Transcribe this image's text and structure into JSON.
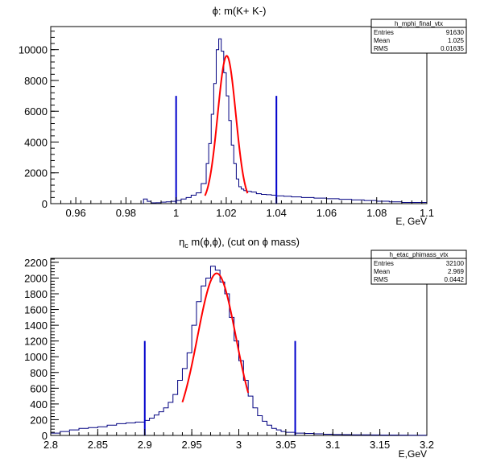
{
  "chart_data": [
    {
      "type": "histogram",
      "title": "ϕ: m(K+ K-)",
      "xlabel": "E, GeV",
      "ylabel": "",
      "xlim": [
        0.95,
        1.1
      ],
      "ylim": [
        0,
        11500
      ],
      "x_ticks": [
        "0.96",
        "0.98",
        "1",
        "1.02",
        "1.04",
        "1.06",
        "1.08",
        "1.1"
      ],
      "x_tick_values": [
        0.96,
        0.98,
        1.0,
        1.02,
        1.04,
        1.06,
        1.08,
        1.1
      ],
      "y_ticks": [
        "0",
        "2000",
        "4000",
        "6000",
        "8000",
        "10000"
      ],
      "y_tick_values": [
        0,
        2000,
        4000,
        6000,
        8000,
        10000
      ],
      "histogram": {
        "color": "#000080",
        "bin_edges": [
          0.987,
          0.9885,
          0.99,
          0.992,
          0.994,
          0.996,
          0.998,
          1.0,
          1.002,
          1.004,
          1.006,
          1.008,
          1.01,
          1.012,
          1.013,
          1.014,
          1.015,
          1.016,
          1.017,
          1.018,
          1.019,
          1.02,
          1.021,
          1.022,
          1.023,
          1.024,
          1.025,
          1.026,
          1.027,
          1.028,
          1.029,
          1.03,
          1.032,
          1.034,
          1.036,
          1.038,
          1.04,
          1.043,
          1.046,
          1.05,
          1.055,
          1.06,
          1.065,
          1.07,
          1.075,
          1.08,
          1.085,
          1.09,
          1.1
        ],
        "counts": [
          300,
          150,
          50,
          60,
          100,
          120,
          150,
          200,
          300,
          400,
          550,
          700,
          1300,
          2600,
          3900,
          5800,
          7800,
          10000,
          10700,
          9900,
          8500,
          7000,
          5400,
          3800,
          2600,
          1600,
          1100,
          950,
          850,
          800,
          800,
          750,
          650,
          600,
          580,
          550,
          500,
          480,
          440,
          400,
          360,
          320,
          280,
          240,
          200,
          160,
          120,
          80
        ]
      },
      "fit": {
        "color": "#ff0000",
        "mean": 1.0202,
        "sigma": 0.0036,
        "amplitude": 9600,
        "x_range": [
          1.0115,
          1.0285
        ]
      },
      "cut_lines": {
        "color": "#0000cc",
        "x": [
          1.0,
          1.04
        ],
        "height": 7000
      },
      "stats": {
        "name": "h_mphi_final_vtx",
        "rows": [
          {
            "label": "Entries",
            "value": "91630"
          },
          {
            "label": "Mean",
            "value": "1.025"
          },
          {
            "label": "RMS",
            "value": "0.01635"
          }
        ]
      }
    },
    {
      "type": "histogram",
      "title_parts": {
        "symbol": "η",
        "sub": "c",
        "rest": " m(ϕ,ϕ), (cut on ϕ mass)"
      },
      "title": "",
      "xlabel": "E,GeV",
      "ylabel": "",
      "xlim": [
        2.8,
        3.2
      ],
      "ylim": [
        0,
        2250
      ],
      "x_ticks": [
        "2.8",
        "2.85",
        "2.9",
        "2.95",
        "3",
        "3.05",
        "3.1",
        "3.15",
        "3.2"
      ],
      "x_tick_values": [
        2.8,
        2.85,
        2.9,
        2.95,
        3.0,
        3.05,
        3.1,
        3.15,
        3.2
      ],
      "y_ticks": [
        "0",
        "200",
        "400",
        "600",
        "800",
        "1000",
        "1200",
        "1400",
        "1600",
        "1800",
        "2000",
        "2200"
      ],
      "y_tick_values": [
        0,
        200,
        400,
        600,
        800,
        1000,
        1200,
        1400,
        1600,
        1800,
        2000,
        2200
      ],
      "histogram": {
        "color": "#000080",
        "bin_edges": [
          2.8,
          2.81,
          2.82,
          2.83,
          2.84,
          2.85,
          2.86,
          2.87,
          2.88,
          2.89,
          2.9,
          2.905,
          2.91,
          2.915,
          2.92,
          2.925,
          2.93,
          2.935,
          2.94,
          2.945,
          2.95,
          2.955,
          2.96,
          2.965,
          2.97,
          2.975,
          2.98,
          2.985,
          2.99,
          2.995,
          3.0,
          3.005,
          3.01,
          3.015,
          3.02,
          3.025,
          3.03,
          3.035,
          3.04,
          3.045,
          3.05,
          3.06,
          3.07,
          3.08,
          3.09,
          3.1,
          3.11,
          3.12,
          3.13,
          3.14,
          3.15,
          3.16,
          3.17,
          3.18,
          3.19,
          3.2
        ],
        "counts": [
          30,
          50,
          70,
          90,
          100,
          110,
          130,
          150,
          160,
          170,
          190,
          220,
          260,
          300,
          350,
          420,
          520,
          700,
          850,
          1050,
          1400,
          1700,
          1900,
          2000,
          2150,
          2100,
          1950,
          1800,
          1500,
          1200,
          950,
          700,
          500,
          350,
          250,
          180,
          130,
          90,
          70,
          50,
          40,
          30,
          25,
          20,
          15,
          12,
          10,
          8,
          8,
          6,
          5,
          5,
          4,
          3,
          3
        ]
      },
      "fit": {
        "color": "#ff0000",
        "mean": 2.9765,
        "sigma": 0.0205,
        "amplitude": 2060,
        "x_range": [
          2.94,
          3.01
        ]
      },
      "cut_lines": {
        "color": "#0000cc",
        "x": [
          2.9,
          3.06
        ],
        "height": 1200
      },
      "stats": {
        "name": "h_etac_phimass_vtx",
        "rows": [
          {
            "label": "Entries",
            "value": "32100"
          },
          {
            "label": "Mean",
            "value": "2.969"
          },
          {
            "label": "RMS",
            "value": "0.0442"
          }
        ]
      }
    }
  ]
}
